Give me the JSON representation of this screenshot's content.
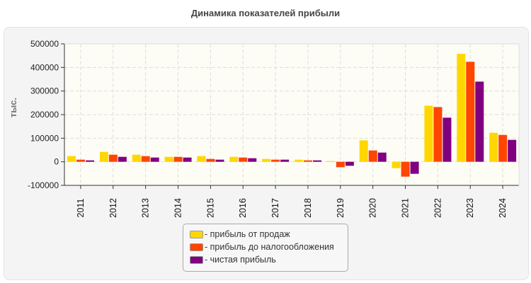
{
  "chart_data": {
    "type": "bar",
    "title": "Динамика показателей прибыли",
    "ylabel": "тыс.",
    "xlabel": "",
    "ylim": [
      -100000,
      500000
    ],
    "yticks": [
      "-100000",
      "0",
      "100000",
      "200000",
      "300000",
      "400000",
      "500000"
    ],
    "grid": true,
    "legend_position": "bottom",
    "categories": [
      "2011",
      "2012",
      "2013",
      "2014",
      "2015",
      "2016",
      "2017",
      "2018",
      "2019",
      "2020",
      "2021",
      "2022",
      "2023",
      "2024"
    ],
    "series": [
      {
        "name": "- прибыль от продаж",
        "color": "#FFD700",
        "values": [
          24000,
          42000,
          30000,
          21000,
          24000,
          21000,
          12000,
          9000,
          3000,
          91000,
          -27000,
          238000,
          458000,
          123000
        ]
      },
      {
        "name": "- прибыль до налогообложения",
        "color": "#FF4500",
        "values": [
          9000,
          30000,
          24000,
          21000,
          12000,
          18000,
          9000,
          6000,
          -23000,
          48000,
          -63000,
          232000,
          424000,
          114000
        ]
      },
      {
        "name": "- чистая прибыль",
        "color": "#800080",
        "values": [
          6000,
          21000,
          18000,
          18000,
          9000,
          15000,
          9000,
          6000,
          -17000,
          39000,
          -51000,
          187000,
          340000,
          93000
        ]
      }
    ]
  }
}
